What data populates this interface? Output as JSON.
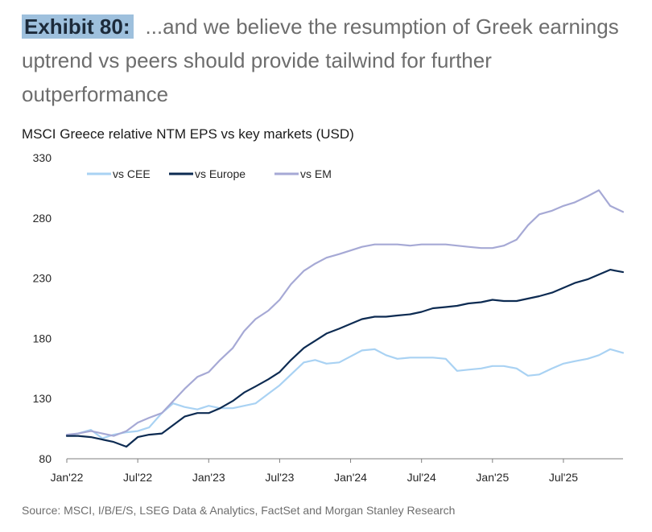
{
  "header": {
    "exhibit_label": "Exhibit 80:",
    "title": "...and we believe the resumption of Greek earnings uptrend vs peers should provide tailwind for further outperformance"
  },
  "chart_data": {
    "type": "line",
    "title": "MSCI Greece relative NTM EPS vs key markets (USD)",
    "xlabel": "",
    "ylabel": "",
    "ylim": [
      80,
      330
    ],
    "yticks": [
      80,
      130,
      180,
      230,
      280,
      330
    ],
    "xlim": [
      2022.0,
      2025.92
    ],
    "xtick_labels": [
      "Jan'22",
      "Jul'22",
      "Jan'23",
      "Jul'23",
      "Jan'24",
      "Jul'24",
      "Jan'25",
      "Jul'25"
    ],
    "xtick_values": [
      2022.0,
      2022.5,
      2023.0,
      2023.5,
      2024.0,
      2024.5,
      2025.0,
      2025.5
    ],
    "grid": false,
    "legend_position": "top-left",
    "x": [
      2022.0,
      2022.08,
      2022.17,
      2022.25,
      2022.33,
      2022.42,
      2022.5,
      2022.58,
      2022.67,
      2022.75,
      2022.83,
      2022.92,
      2023.0,
      2023.08,
      2023.17,
      2023.25,
      2023.33,
      2023.42,
      2023.5,
      2023.58,
      2023.67,
      2023.75,
      2023.83,
      2023.92,
      2024.0,
      2024.08,
      2024.17,
      2024.25,
      2024.33,
      2024.42,
      2024.5,
      2024.58,
      2024.67,
      2024.75,
      2024.83,
      2024.92,
      2025.0,
      2025.08,
      2025.17,
      2025.25,
      2025.33,
      2025.42,
      2025.5,
      2025.58,
      2025.67,
      2025.75,
      2025.83,
      2025.92
    ],
    "series": [
      {
        "name": "vs CEE",
        "color": "#a9d2f3",
        "values": [
          99,
          101,
          104,
          97,
          100,
          102,
          103,
          106,
          118,
          126,
          123,
          121,
          124,
          122,
          122,
          124,
          126,
          134,
          141,
          150,
          160,
          162,
          159,
          160,
          165,
          170,
          171,
          166,
          163,
          164,
          164,
          164,
          163,
          153,
          154,
          155,
          157,
          157,
          155,
          149,
          150,
          155,
          159,
          161,
          163,
          166,
          171,
          168
        ]
      },
      {
        "name": "vs Europe",
        "color": "#0d2b52",
        "values": [
          99,
          99,
          98,
          96,
          94,
          90,
          98,
          100,
          101,
          108,
          115,
          118,
          118,
          122,
          128,
          135,
          140,
          146,
          152,
          162,
          172,
          178,
          184,
          188,
          192,
          196,
          198,
          198,
          199,
          200,
          202,
          205,
          206,
          207,
          209,
          210,
          212,
          211,
          211,
          213,
          215,
          218,
          222,
          226,
          229,
          233,
          237,
          235
        ]
      },
      {
        "name": "vs EM",
        "color": "#a6a9d5",
        "values": [
          100,
          101,
          103,
          101,
          99,
          103,
          110,
          114,
          118,
          128,
          138,
          148,
          152,
          162,
          172,
          186,
          196,
          203,
          212,
          225,
          236,
          242,
          247,
          250,
          253,
          256,
          258,
          258,
          258,
          257,
          258,
          258,
          258,
          257,
          256,
          255,
          255,
          257,
          262,
          274,
          283,
          286,
          290,
          293,
          298,
          303,
          290,
          285
        ]
      }
    ]
  },
  "footer": {
    "source": "Source: MSCI, I/B/E/S, LSEG Data & Analytics, FactSet and Morgan Stanley Research"
  }
}
